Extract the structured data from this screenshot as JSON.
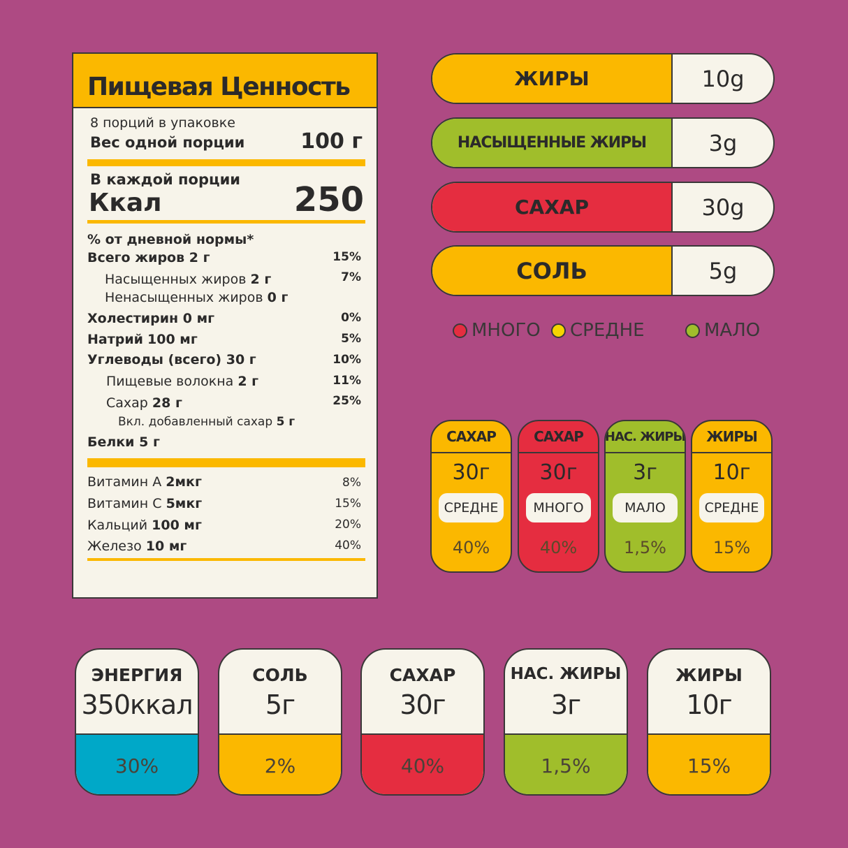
{
  "colors": {
    "background": "#ae4a83",
    "yellow": "#fbb800",
    "red": "#e52d40",
    "green": "#a0be2b",
    "blue": "#00a8c8",
    "cream": "#f7f4ea",
    "outline": "#3a3838"
  },
  "label": {
    "title": "Пищевая Ценность",
    "servings_per_pack": "8 порций в упаковке",
    "serving_weight_label": "Вес одной порции",
    "serving_weight_value": "100 г",
    "per_serving": "В каждой порции",
    "kcal_label": "Ккал",
    "kcal_value": "250",
    "daily_value_header": "% от дневной нормы*",
    "rows": [
      {
        "name": "Всего жиров",
        "amount": "2 г",
        "pct": "15%"
      },
      {
        "name": "Насыщенных жиров",
        "amount": "2 г",
        "pct": "7%"
      },
      {
        "name": "Ненасыщенных жиров",
        "amount": "0 г",
        "pct": ""
      },
      {
        "name": "Холестирин",
        "amount": "0 мг",
        "pct": "0%"
      },
      {
        "name": "Натрий",
        "amount": "100 мг",
        "pct": "5%"
      },
      {
        "name": "Углеводы (всего)",
        "amount": "30 г",
        "pct": "10%"
      },
      {
        "name": "Пищевые волокна",
        "amount": "2 г",
        "pct": "11%"
      },
      {
        "name": "Сахар",
        "amount": "28 г",
        "pct": "25%"
      },
      {
        "name": "Вкл. добавленный сахар",
        "amount": "5 г",
        "pct": ""
      },
      {
        "name": "Белки",
        "amount": "5 г",
        "pct": ""
      }
    ],
    "vitamins": [
      {
        "name": "Витамин А",
        "amount": "2мкг",
        "pct": "8%"
      },
      {
        "name": "Витамин С",
        "amount": "5мкг",
        "pct": "15%"
      },
      {
        "name": "Кальций",
        "amount": "100 мг",
        "pct": "20%"
      },
      {
        "name": "Железо",
        "amount": "10 мг",
        "pct": "40%"
      }
    ]
  },
  "pills": [
    {
      "label": "ЖИРЫ",
      "value": "10g",
      "color": "#fbb800"
    },
    {
      "label": "НАСЫЩЕННЫЕ ЖИРЫ",
      "value": "3g",
      "color": "#a0be2b"
    },
    {
      "label": "САХАР",
      "value": "30g",
      "color": "#e52d40"
    },
    {
      "label": "СОЛЬ",
      "value": "5g",
      "color": "#fbb800"
    }
  ],
  "legend": [
    {
      "label": "МНОГО",
      "color": "#e52d40"
    },
    {
      "label": "СРЕДНЕ",
      "color": "#f5d400"
    },
    {
      "label": "МАЛО",
      "color": "#a0be2b"
    }
  ],
  "badges": [
    {
      "title": "САХАР",
      "value": "30г",
      "level": "СРЕДНЕ",
      "pct": "40%",
      "color": "#fbb800"
    },
    {
      "title": "САХАР",
      "value": "30г",
      "level": "МНОГО",
      "pct": "40%",
      "color": "#e52d40"
    },
    {
      "title": "НАС. ЖИРЫ",
      "value": "3г",
      "level": "МАЛО",
      "pct": "1,5%",
      "color": "#a0be2b"
    },
    {
      "title": "ЖИРЫ",
      "value": "10г",
      "level": "СРЕДНЕ",
      "pct": "15%",
      "color": "#fbb800"
    }
  ],
  "big_badges": [
    {
      "title": "ЭНЕРГИЯ",
      "value": "350ккал",
      "pct": "30%",
      "color": "#00a8c8"
    },
    {
      "title": "СОЛЬ",
      "value": "5г",
      "pct": "2%",
      "color": "#fbb800"
    },
    {
      "title": "САХАР",
      "value": "30г",
      "pct": "40%",
      "color": "#e52d40"
    },
    {
      "title": "НАС. ЖИРЫ",
      "value": "3г",
      "pct": "1,5%",
      "color": "#a0be2b"
    },
    {
      "title": "ЖИРЫ",
      "value": "10г",
      "pct": "15%",
      "color": "#fbb800"
    }
  ]
}
